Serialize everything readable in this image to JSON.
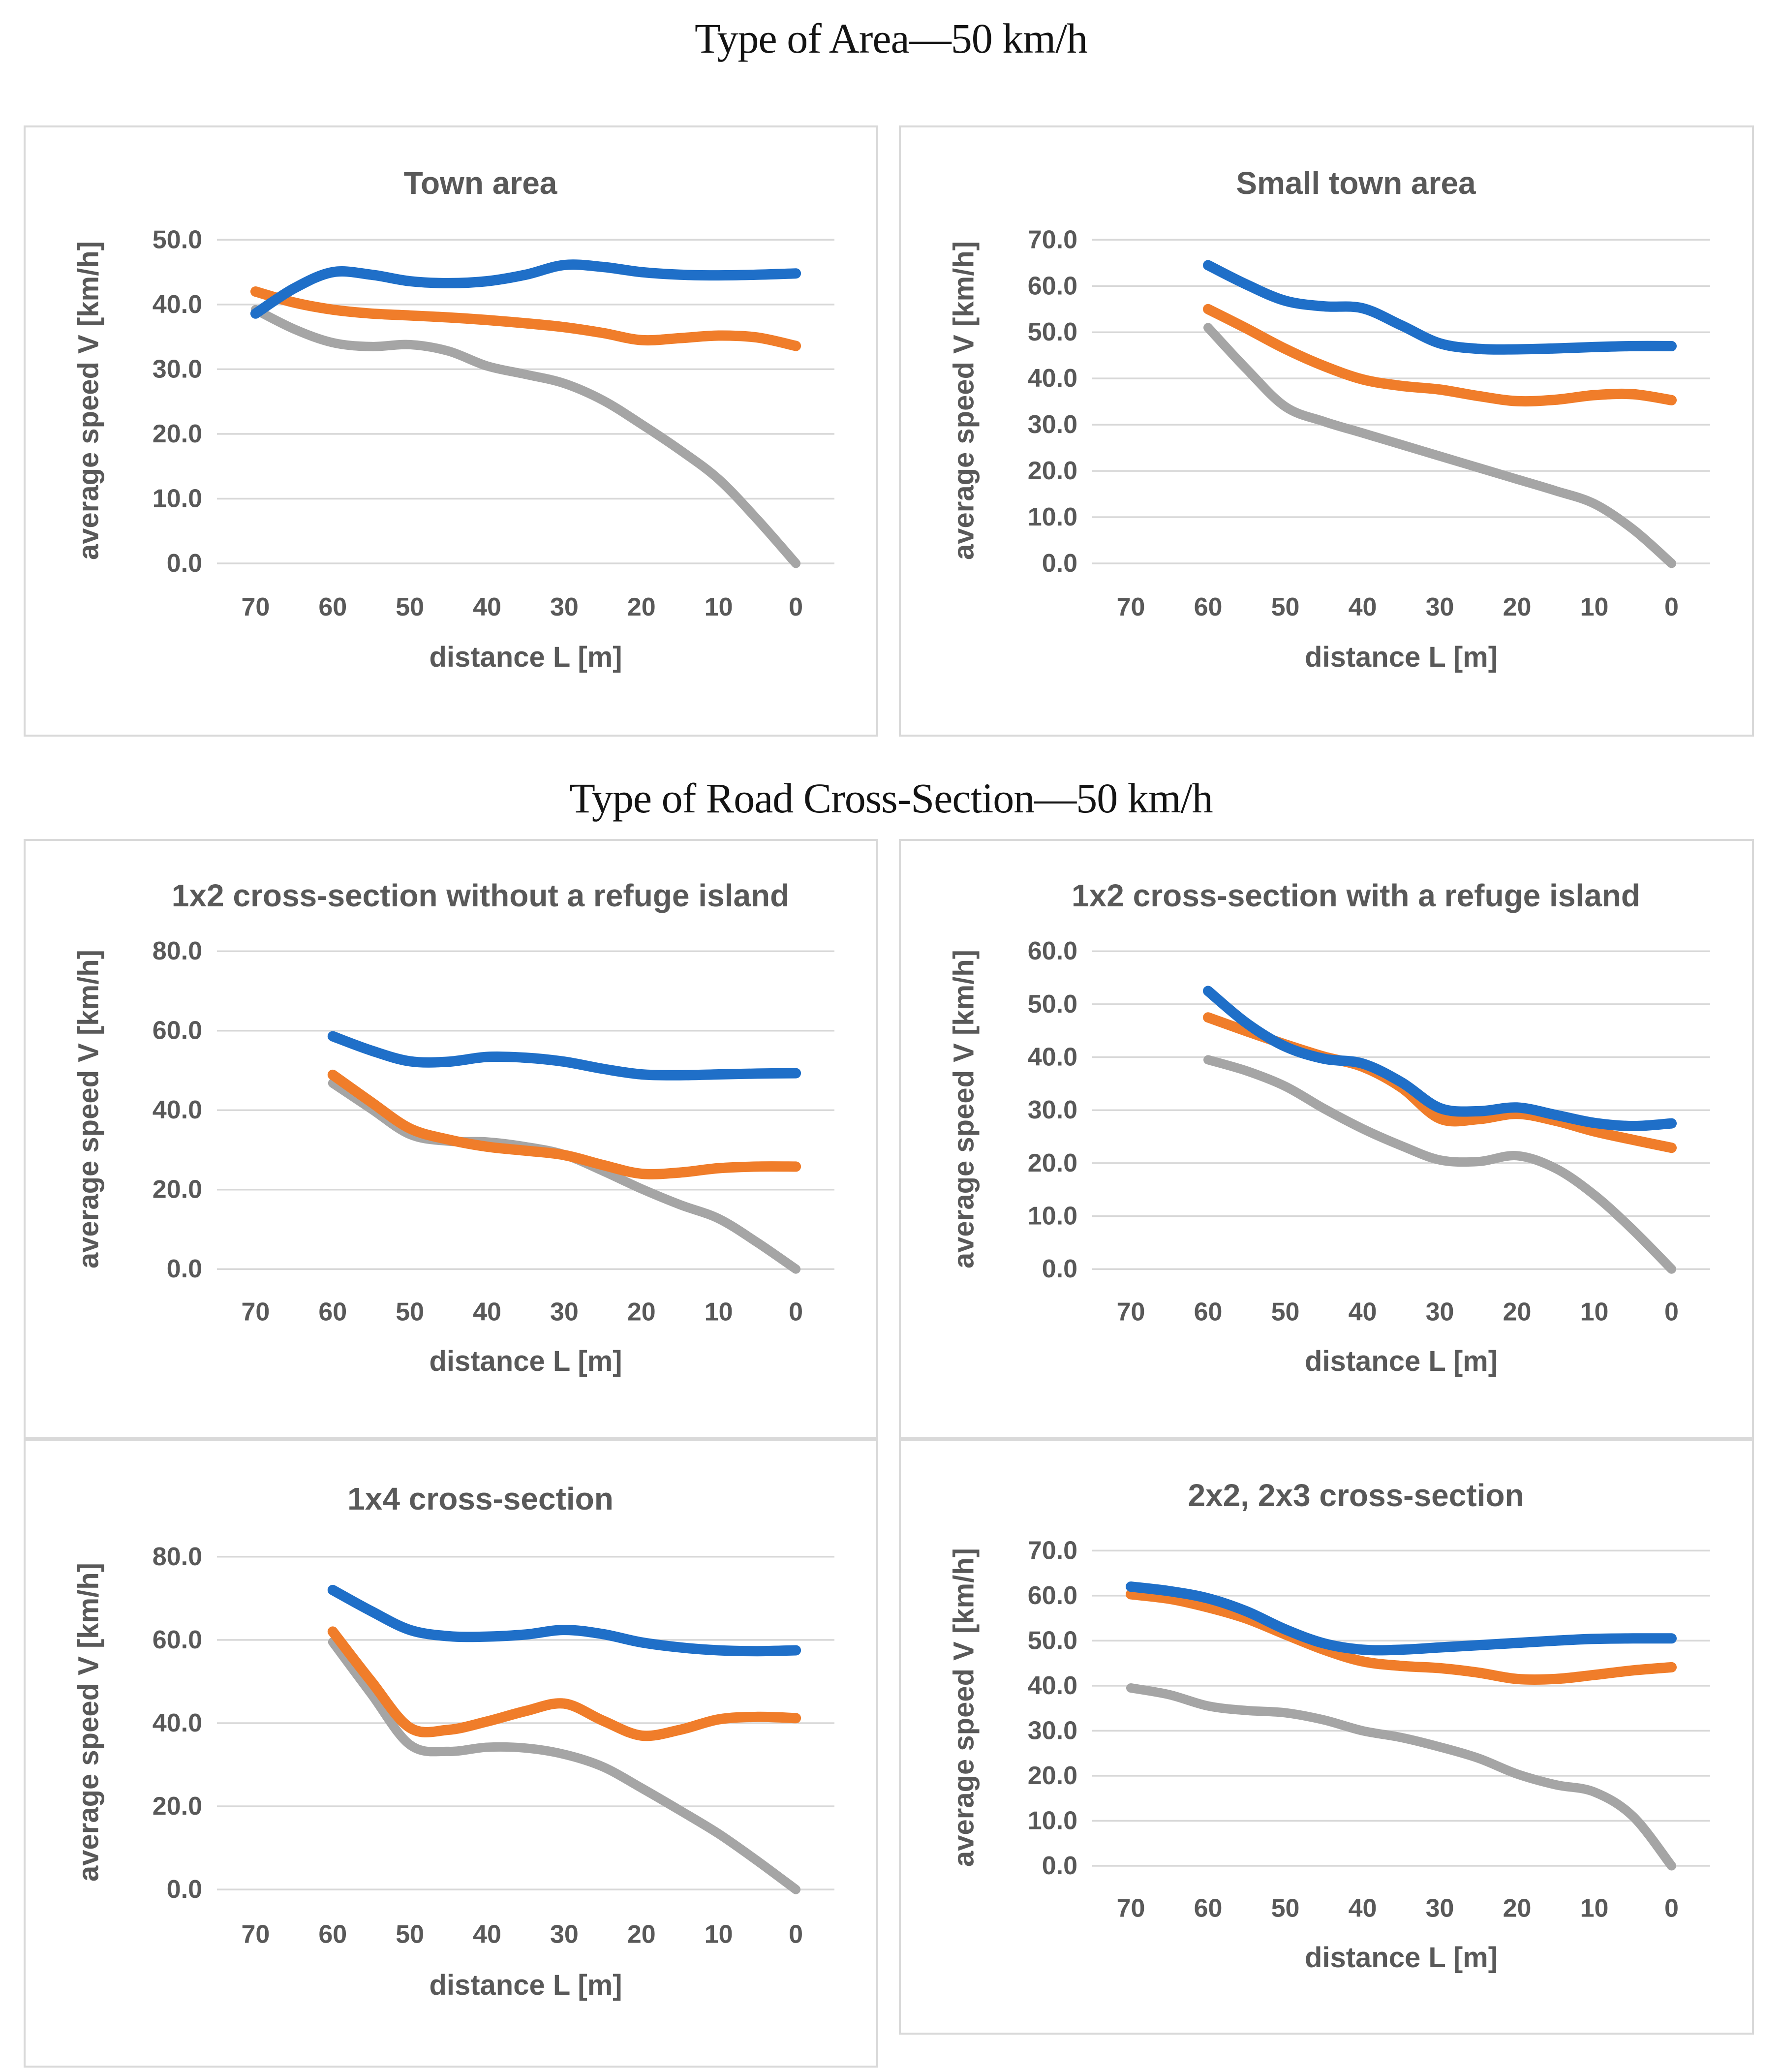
{
  "page": {
    "background": "#ffffff"
  },
  "section_titles": {
    "area": "Type of Area—50 km/h",
    "cross_section": "Type of Road Cross-Section—50 km/h"
  },
  "palette": {
    "blue": "#1F6FC8",
    "orange": "#F07D2A",
    "gray": "#A5A5A5",
    "grid": "#D8D8D8",
    "chart_text": "#595959",
    "panel_border": "#D9D9D9"
  },
  "chart_data": [
    {
      "type": "line",
      "title": "Town area",
      "xlabel": "distance L [m]",
      "ylabel": "average speed V [km/h]",
      "x_ticks": [
        70,
        60,
        50,
        40,
        30,
        20,
        10,
        0
      ],
      "ylim": [
        0,
        50
      ],
      "ystep": 10,
      "grid": true,
      "legend": "none",
      "x": [
        70,
        65,
        60,
        55,
        50,
        45,
        40,
        35,
        30,
        25,
        20,
        15,
        10,
        5,
        0
      ],
      "series": [
        {
          "name": "gray",
          "color_key": "gray",
          "values": [
            39.2,
            36.2,
            34.1,
            33.5,
            33.8,
            32.8,
            30.5,
            29.2,
            27.8,
            25.2,
            21.5,
            17.5,
            13.0,
            6.8,
            0.0
          ]
        },
        {
          "name": "orange",
          "color_key": "orange",
          "values": [
            42.0,
            40.3,
            39.2,
            38.6,
            38.3,
            38.0,
            37.6,
            37.1,
            36.5,
            35.6,
            34.5,
            34.8,
            35.2,
            34.9,
            33.6
          ]
        },
        {
          "name": "blue",
          "color_key": "blue",
          "values": [
            38.6,
            42.5,
            45.0,
            44.6,
            43.6,
            43.3,
            43.6,
            44.6,
            46.1,
            45.8,
            45.0,
            44.6,
            44.5,
            44.6,
            44.8
          ]
        }
      ]
    },
    {
      "type": "line",
      "title": "Small town area",
      "xlabel": "distance L [m]",
      "ylabel": "average speed V [km/h]",
      "x_ticks": [
        70,
        60,
        50,
        40,
        30,
        20,
        10,
        0
      ],
      "ylim": [
        0,
        70
      ],
      "ystep": 10,
      "grid": true,
      "legend": "none",
      "x": [
        60,
        55,
        50,
        45,
        40,
        35,
        30,
        25,
        20,
        15,
        10,
        5,
        0
      ],
      "series": [
        {
          "name": "gray",
          "color_key": "gray",
          "values": [
            51.0,
            42.0,
            33.9,
            30.7,
            28.2,
            25.7,
            23.2,
            20.7,
            18.2,
            15.7,
            12.9,
            7.4,
            0.0
          ]
        },
        {
          "name": "orange",
          "color_key": "orange",
          "values": [
            55.0,
            50.8,
            46.4,
            42.7,
            39.8,
            38.4,
            37.6,
            36.2,
            35.1,
            35.4,
            36.4,
            36.6,
            35.3
          ]
        },
        {
          "name": "blue",
          "color_key": "blue",
          "values": [
            64.5,
            60.3,
            56.8,
            55.6,
            55.2,
            51.5,
            47.6,
            46.4,
            46.3,
            46.5,
            46.8,
            47.0,
            47.0
          ]
        }
      ]
    },
    {
      "type": "line",
      "title": "1x2 cross-section without a refuge island",
      "xlabel": "distance L [m]",
      "ylabel": "average speed V [km/h]",
      "x_ticks": [
        70,
        60,
        50,
        40,
        30,
        20,
        10,
        0
      ],
      "ylim": [
        0,
        80
      ],
      "ystep": 20,
      "grid": true,
      "legend": "none",
      "x": [
        60,
        55,
        50,
        45,
        40,
        35,
        30,
        25,
        20,
        15,
        10,
        5,
        0
      ],
      "series": [
        {
          "name": "gray",
          "color_key": "gray",
          "values": [
            46.8,
            40.3,
            33.9,
            32.2,
            32.0,
            30.8,
            28.8,
            24.7,
            20.2,
            16.2,
            12.7,
            6.7,
            0.0
          ]
        },
        {
          "name": "orange",
          "color_key": "orange",
          "values": [
            48.9,
            42.0,
            35.4,
            32.6,
            30.8,
            29.8,
            28.7,
            26.2,
            24.0,
            24.3,
            25.4,
            25.8,
            25.8
          ]
        },
        {
          "name": "blue",
          "color_key": "blue",
          "values": [
            58.6,
            55.0,
            52.3,
            52.2,
            53.4,
            53.2,
            52.2,
            50.4,
            49.0,
            48.8,
            49.0,
            49.2,
            49.3
          ]
        }
      ]
    },
    {
      "type": "line",
      "title": "1x2 cross-section with a refuge island",
      "xlabel": "distance L [m]",
      "ylabel": "average speed V [km/h]",
      "x_ticks": [
        70,
        60,
        50,
        40,
        30,
        20,
        10,
        0
      ],
      "ylim": [
        0,
        60
      ],
      "ystep": 10,
      "grid": true,
      "legend": "none",
      "x": [
        60,
        55,
        50,
        45,
        40,
        35,
        30,
        25,
        20,
        15,
        10,
        5,
        0
      ],
      "series": [
        {
          "name": "gray",
          "color_key": "gray",
          "values": [
            39.5,
            37.4,
            34.5,
            30.3,
            26.5,
            23.3,
            20.6,
            20.3,
            21.4,
            19.0,
            14.0,
            7.4,
            0.0
          ]
        },
        {
          "name": "orange",
          "color_key": "orange",
          "values": [
            47.5,
            44.9,
            42.4,
            40.1,
            38.2,
            34.3,
            28.4,
            28.3,
            29.3,
            28.0,
            26.0,
            24.4,
            22.9
          ]
        },
        {
          "name": "blue",
          "color_key": "blue",
          "values": [
            52.5,
            46.4,
            42.0,
            39.7,
            38.8,
            35.3,
            30.4,
            29.8,
            30.5,
            29.1,
            27.6,
            27.0,
            27.5
          ]
        }
      ]
    },
    {
      "type": "line",
      "title": "1x4 cross-section",
      "xlabel": "distance L [m]",
      "ylabel": "average speed V [km/h]",
      "x_ticks": [
        70,
        60,
        50,
        40,
        30,
        20,
        10,
        0
      ],
      "ylim": [
        0,
        80
      ],
      "ystep": 20,
      "grid": true,
      "legend": "none",
      "x": [
        60,
        55,
        50,
        45,
        40,
        35,
        30,
        25,
        20,
        15,
        10,
        5,
        0
      ],
      "series": [
        {
          "name": "gray",
          "color_key": "gray",
          "values": [
            59.5,
            47.0,
            34.8,
            33.2,
            34.2,
            34.0,
            32.5,
            29.5,
            24.4,
            19.0,
            13.4,
            6.9,
            0.0
          ]
        },
        {
          "name": "orange",
          "color_key": "orange",
          "values": [
            62.0,
            50.0,
            38.9,
            38.4,
            40.4,
            42.9,
            44.7,
            40.6,
            37.0,
            38.4,
            40.9,
            41.5,
            41.2
          ]
        },
        {
          "name": "blue",
          "color_key": "blue",
          "values": [
            72.0,
            66.9,
            62.4,
            60.9,
            60.8,
            61.3,
            62.4,
            61.4,
            59.4,
            58.2,
            57.5,
            57.3,
            57.5
          ]
        }
      ]
    },
    {
      "type": "line",
      "title": "2x2, 2x3 cross-section",
      "xlabel": "distance L [m]",
      "ylabel": "average speed V [km/h]",
      "x_ticks": [
        70,
        60,
        50,
        40,
        30,
        20,
        10,
        0
      ],
      "ylim": [
        0,
        70
      ],
      "ystep": 10,
      "grid": true,
      "legend": "none",
      "x": [
        70,
        65,
        60,
        55,
        50,
        45,
        40,
        35,
        30,
        25,
        20,
        15,
        10,
        5,
        0
      ],
      "series": [
        {
          "name": "gray",
          "color_key": "gray",
          "values": [
            39.5,
            38.0,
            35.5,
            34.5,
            34.0,
            32.4,
            30.0,
            28.5,
            26.4,
            23.9,
            20.4,
            18.0,
            16.4,
            11.0,
            0.0
          ]
        },
        {
          "name": "orange",
          "color_key": "orange",
          "values": [
            60.3,
            59.3,
            57.4,
            54.9,
            51.4,
            48.0,
            45.4,
            44.4,
            43.9,
            42.9,
            41.5,
            41.5,
            42.4,
            43.4,
            44.1
          ]
        },
        {
          "name": "blue",
          "color_key": "blue",
          "values": [
            62.0,
            61.0,
            59.4,
            56.5,
            52.5,
            49.4,
            48.0,
            48.0,
            48.5,
            49.0,
            49.5,
            50.0,
            50.4,
            50.5,
            50.5
          ]
        }
      ]
    }
  ]
}
